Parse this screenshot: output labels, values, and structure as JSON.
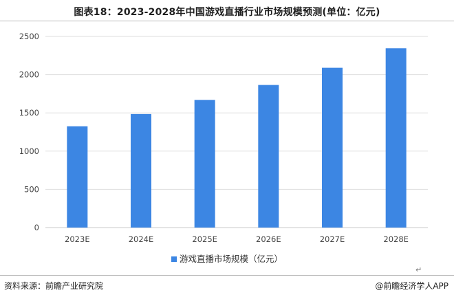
{
  "title": "图表18：2023-2028年中国游戏直播行业市场规模预测(单位：亿元)",
  "footer": {
    "source": "资料来源：前瞻产业研究院",
    "brand": "@前瞻经济学人APP"
  },
  "return_mark": "↵",
  "chart_data": {
    "type": "bar",
    "title": "图表18：2023-2028年中国游戏直播行业市场规模预测(单位：亿元)",
    "categories": [
      "2023E",
      "2024E",
      "2025E",
      "2026E",
      "2027E",
      "2028E"
    ],
    "series": [
      {
        "name": "游戏直播市场规模（亿元）",
        "values": [
          1325,
          1485,
          1670,
          1865,
          2090,
          2345
        ],
        "color": "#3c86e3"
      }
    ],
    "ylim": [
      0,
      2500
    ],
    "yticks": [
      0,
      500,
      1000,
      1500,
      2000,
      2500
    ],
    "grid": true,
    "legend": "bottom-center",
    "xlabel": "",
    "ylabel": ""
  }
}
